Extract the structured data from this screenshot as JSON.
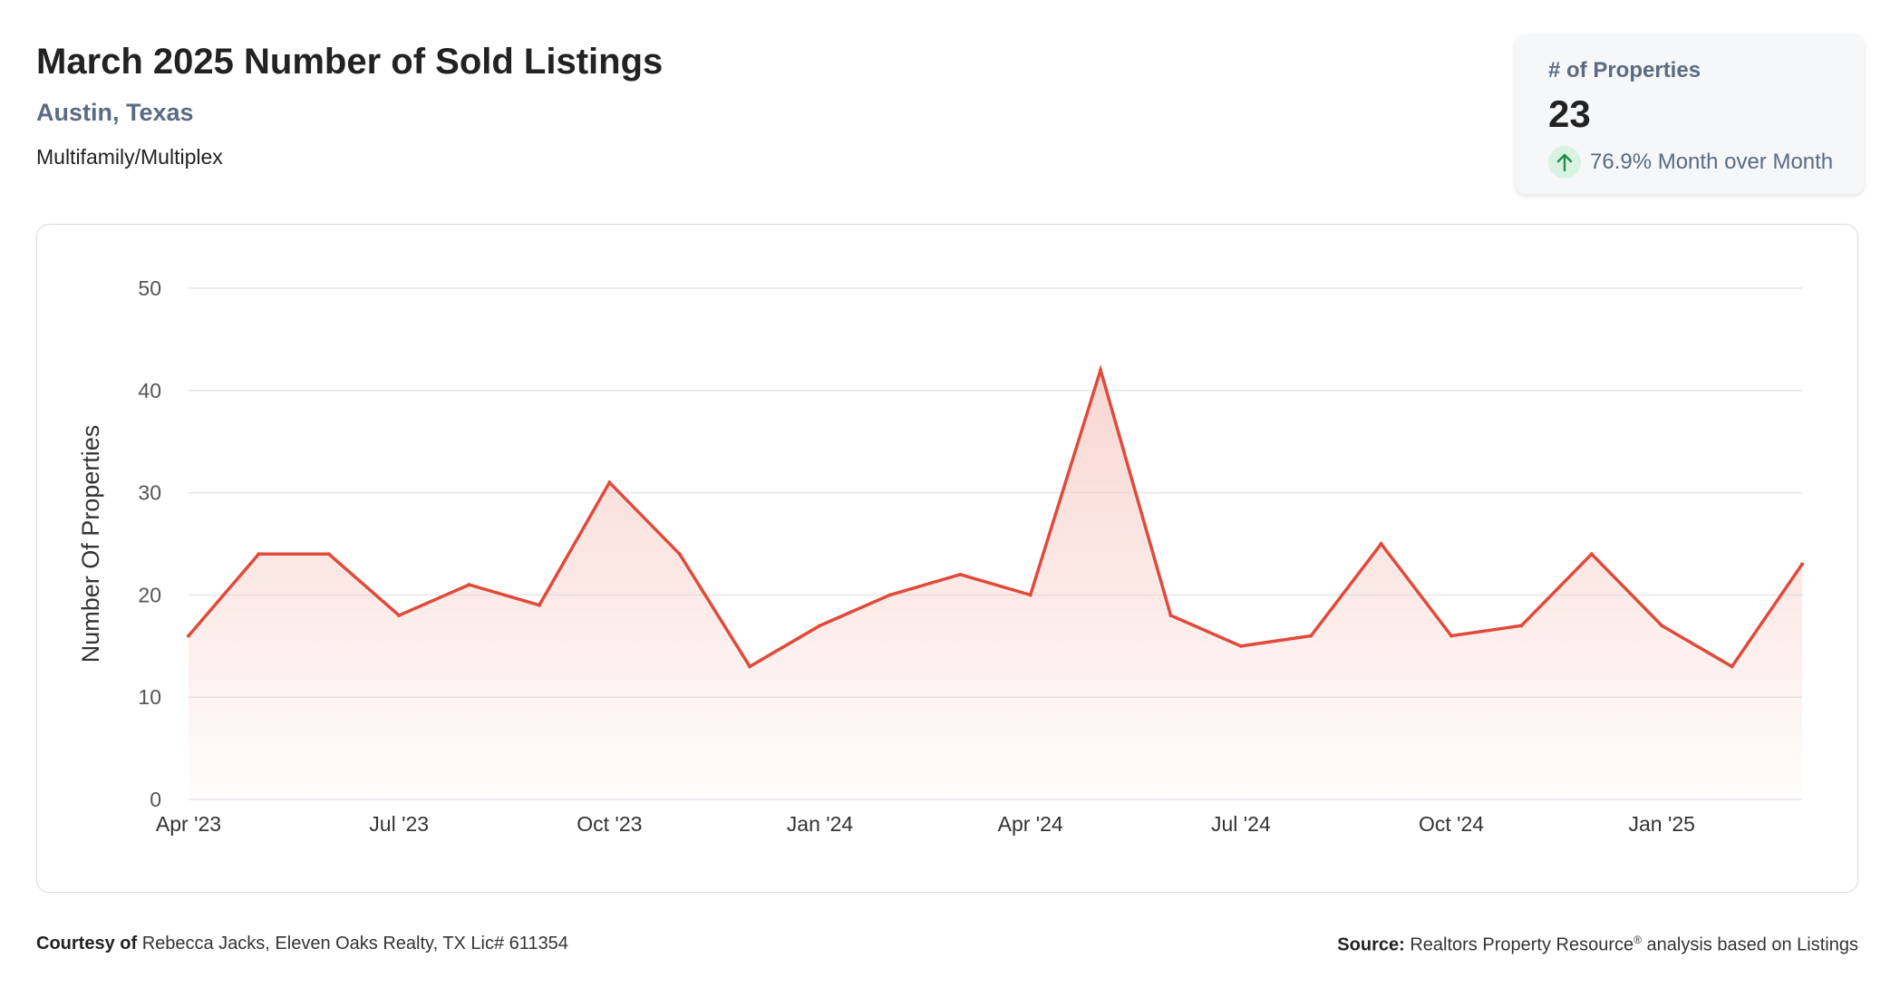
{
  "header": {
    "title": "March 2025 Number of Sold Listings",
    "location": "Austin, Texas",
    "property_type": "Multifamily/Multiplex"
  },
  "stat_card": {
    "label": "# of Properties",
    "value": "23",
    "change": "76.9% Month over Month",
    "trend_icon": "arrow-up-icon",
    "trend_color": "#1e8e4e"
  },
  "chart_data": {
    "type": "area",
    "ylabel": "Number Of Properties",
    "xlabel": "",
    "ylim": [
      0,
      50
    ],
    "yticks": [
      0,
      10,
      20,
      30,
      40,
      50
    ],
    "x": [
      "Apr '23",
      "May '23",
      "Jun '23",
      "Jul '23",
      "Aug '23",
      "Sep '23",
      "Oct '23",
      "Nov '23",
      "Dec '23",
      "Jan '24",
      "Feb '24",
      "Mar '24",
      "Apr '24",
      "May '24",
      "Jun '24",
      "Jul '24",
      "Aug '24",
      "Sep '24",
      "Oct '24",
      "Nov '24",
      "Dec '24",
      "Jan '25",
      "Feb '25",
      "Mar '25"
    ],
    "xtick_labels": [
      "Apr '23",
      "Jul '23",
      "Oct '23",
      "Jan '24",
      "Apr '24",
      "Jul '24",
      "Oct '24",
      "Jan '25"
    ],
    "values": [
      16,
      24,
      24,
      18,
      21,
      19,
      31,
      24,
      13,
      17,
      20,
      22,
      20,
      42,
      18,
      15,
      16,
      25,
      16,
      17,
      24,
      17,
      13,
      23
    ],
    "grid": true,
    "line_color": "#e04a3a",
    "fill_color": "#f6c9c2"
  },
  "footer": {
    "courtesy_label": "Courtesy of",
    "courtesy_text": "Rebecca Jacks, Eleven Oaks Realty, TX Lic# 611354",
    "source_label": "Source:",
    "source_text_1": "Realtors Property Resource",
    "source_reg": "®",
    "source_text_2": "analysis based on Listings"
  }
}
